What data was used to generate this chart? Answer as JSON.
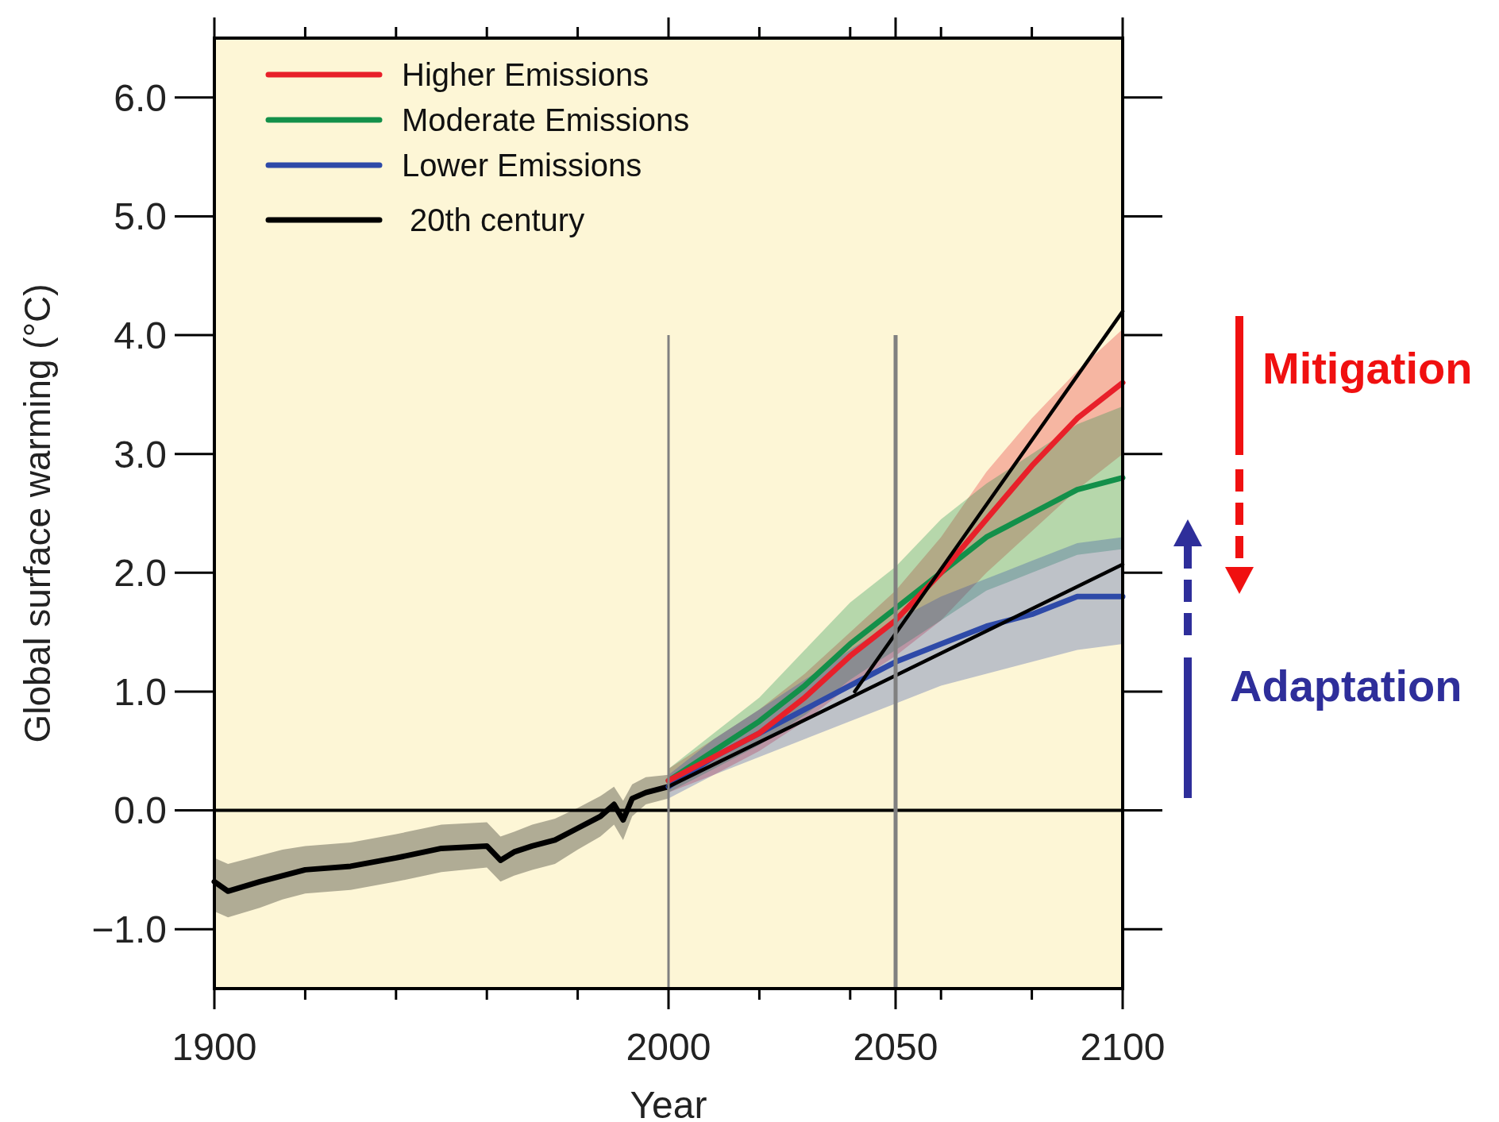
{
  "chart_data": {
    "type": "line",
    "xlabel": "Year",
    "ylabel": "Global surface warming (°C)",
    "xlim": [
      1900,
      2100
    ],
    "ylim": [
      -1.5,
      6.5
    ],
    "xticks": [
      1900,
      {
        "value": 1920,
        "label": null
      },
      {
        "value": 1940,
        "label": null
      },
      {
        "value": 1960,
        "label": null
      },
      {
        "value": 1980,
        "label": null
      },
      2000,
      {
        "value": 2020,
        "label": null
      },
      {
        "value": 2040,
        "label": null
      },
      2050,
      {
        "value": 2060,
        "label": null
      },
      {
        "value": 2080,
        "label": null
      },
      2100
    ],
    "yticks": [
      {
        "value": -1,
        "label": "−1.0"
      },
      {
        "value": 0,
        "label": "0.0"
      },
      {
        "value": 1,
        "label": "1.0"
      },
      {
        "value": 2,
        "label": "2.0"
      },
      {
        "value": 3,
        "label": "3.0"
      },
      {
        "value": 4,
        "label": "4.0"
      },
      {
        "value": 5,
        "label": "5.0"
      },
      {
        "value": 6,
        "label": "6.0"
      }
    ],
    "legend": "top left",
    "grid": false,
    "series": [
      {
        "name": "Higher Emissions",
        "color": "#e8202a",
        "x": [
          2000,
          2010,
          2020,
          2030,
          2040,
          2050,
          2060,
          2070,
          2080,
          2090,
          2100
        ],
        "values": [
          0.25,
          0.45,
          0.65,
          0.95,
          1.3,
          1.6,
          2.0,
          2.45,
          2.9,
          3.3,
          3.6
        ],
        "lower": [
          0.15,
          0.3,
          0.5,
          0.75,
          1.05,
          1.3,
          1.6,
          2.0,
          2.35,
          2.7,
          3.0
        ],
        "upper": [
          0.35,
          0.6,
          0.85,
          1.15,
          1.5,
          1.85,
          2.3,
          2.85,
          3.3,
          3.7,
          4.05
        ]
      },
      {
        "name": "Moderate Emissions",
        "color": "#13904a",
        "x": [
          2000,
          2010,
          2020,
          2030,
          2040,
          2050,
          2060,
          2070,
          2080,
          2090,
          2100
        ],
        "values": [
          0.25,
          0.5,
          0.75,
          1.05,
          1.4,
          1.7,
          2.0,
          2.3,
          2.5,
          2.7,
          2.8
        ],
        "lower": [
          0.15,
          0.35,
          0.55,
          0.8,
          1.1,
          1.35,
          1.6,
          1.85,
          2.0,
          2.15,
          2.2
        ],
        "upper": [
          0.35,
          0.65,
          0.95,
          1.35,
          1.75,
          2.05,
          2.45,
          2.75,
          3.0,
          3.25,
          3.4
        ]
      },
      {
        "name": "Lower Emissions",
        "color": "#2e4aa8",
        "x": [
          2000,
          2010,
          2020,
          2030,
          2040,
          2050,
          2060,
          2070,
          2080,
          2090,
          2100
        ],
        "values": [
          0.2,
          0.45,
          0.65,
          0.85,
          1.05,
          1.25,
          1.4,
          1.55,
          1.65,
          1.8,
          1.8
        ],
        "lower": [
          0.1,
          0.3,
          0.45,
          0.6,
          0.75,
          0.9,
          1.05,
          1.15,
          1.25,
          1.35,
          1.4
        ],
        "upper": [
          0.3,
          0.6,
          0.85,
          1.1,
          1.35,
          1.6,
          1.8,
          1.95,
          2.1,
          2.25,
          2.3
        ]
      },
      {
        "name": "20th century",
        "color": "#000000",
        "x": [
          1900,
          1903,
          1910,
          1915,
          1920,
          1930,
          1940,
          1950,
          1960,
          1963,
          1966,
          1970,
          1975,
          1980,
          1985,
          1988,
          1990,
          1992,
          1995,
          2000
        ],
        "values": [
          -0.6,
          -0.68,
          -0.6,
          -0.55,
          -0.5,
          -0.47,
          -0.4,
          -0.32,
          -0.3,
          -0.42,
          -0.35,
          -0.3,
          -0.25,
          -0.15,
          -0.05,
          0.05,
          -0.08,
          0.1,
          0.15,
          0.2
        ],
        "lower": [
          -0.85,
          -0.9,
          -0.82,
          -0.75,
          -0.7,
          -0.67,
          -0.6,
          -0.52,
          -0.48,
          -0.6,
          -0.55,
          -0.5,
          -0.45,
          -0.33,
          -0.22,
          -0.12,
          -0.25,
          -0.05,
          0.05,
          0.1
        ],
        "upper": [
          -0.4,
          -0.45,
          -0.38,
          -0.33,
          -0.3,
          -0.27,
          -0.2,
          -0.12,
          -0.1,
          -0.22,
          -0.18,
          -0.12,
          -0.07,
          0.02,
          0.12,
          0.2,
          0.08,
          0.22,
          0.28,
          0.3
        ]
      },
      {
        "color": "#000000",
        "x": [
          2000,
          2100
        ],
        "values": [
          0.2,
          2.07
        ]
      },
      {
        "color": "#000000",
        "x": [
          2041,
          2100
        ],
        "values": [
          1.0,
          4.2
        ]
      }
    ],
    "ref_lines": [
      {
        "axis": "y",
        "value": 0,
        "color": "#000000"
      },
      {
        "axis": "x",
        "value": 2000,
        "color": "#808080"
      },
      {
        "axis": "x",
        "value": 2050,
        "color": "#808080"
      }
    ],
    "annotations": [
      "Mitigation",
      "Adaptation"
    ]
  }
}
